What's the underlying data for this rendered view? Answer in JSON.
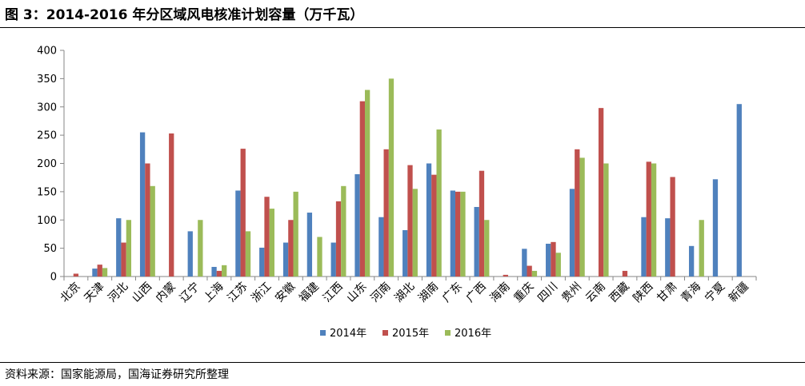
{
  "figure": {
    "title": "图 3：2014-2016 年分区域风电核准计划容量（万千瓦）",
    "source": "资料来源：国家能源局，国海证券研究所整理"
  },
  "colors": {
    "s2014": "#4F81BD",
    "s2015": "#C0504D",
    "s2016": "#9BBB59",
    "axis": "#868686"
  },
  "chart_data": {
    "type": "bar",
    "title": "",
    "xlabel": "",
    "ylabel": "",
    "ylim": [
      0,
      400
    ],
    "yticks": [
      0,
      50,
      100,
      150,
      200,
      250,
      300,
      350,
      400
    ],
    "grid": false,
    "legend_position": "bottom",
    "categories": [
      "北京",
      "天津",
      "河北",
      "山西",
      "内蒙",
      "辽宁",
      "上海",
      "江苏",
      "浙江",
      "安徽",
      "福建",
      "江西",
      "山东",
      "河南",
      "湖北",
      "湖南",
      "广东",
      "广西",
      "海南",
      "重庆",
      "四川",
      "贵州",
      "云南",
      "西藏",
      "陕西",
      "甘肃",
      "青海",
      "宁夏",
      "新疆"
    ],
    "series": [
      {
        "name": "2014年",
        "color": "#4F81BD",
        "values": [
          0,
          14,
          103,
          255,
          0,
          80,
          17,
          152,
          51,
          60,
          113,
          60,
          181,
          105,
          82,
          200,
          152,
          123,
          0,
          49,
          58,
          155,
          0,
          0,
          105,
          103,
          54,
          172,
          305
        ]
      },
      {
        "name": "2015年",
        "color": "#C0504D",
        "values": [
          5,
          21,
          60,
          200,
          253,
          0,
          10,
          226,
          141,
          100,
          0,
          133,
          310,
          225,
          197,
          180,
          150,
          187,
          3,
          19,
          61,
          225,
          298,
          10,
          203,
          176,
          0,
          0,
          0
        ]
      },
      {
        "name": "2016年",
        "color": "#9BBB59",
        "values": [
          0,
          15,
          100,
          160,
          0,
          100,
          20,
          80,
          120,
          150,
          70,
          160,
          330,
          350,
          155,
          260,
          150,
          100,
          0,
          10,
          42,
          210,
          200,
          0,
          200,
          0,
          100,
          0,
          0
        ]
      }
    ]
  }
}
